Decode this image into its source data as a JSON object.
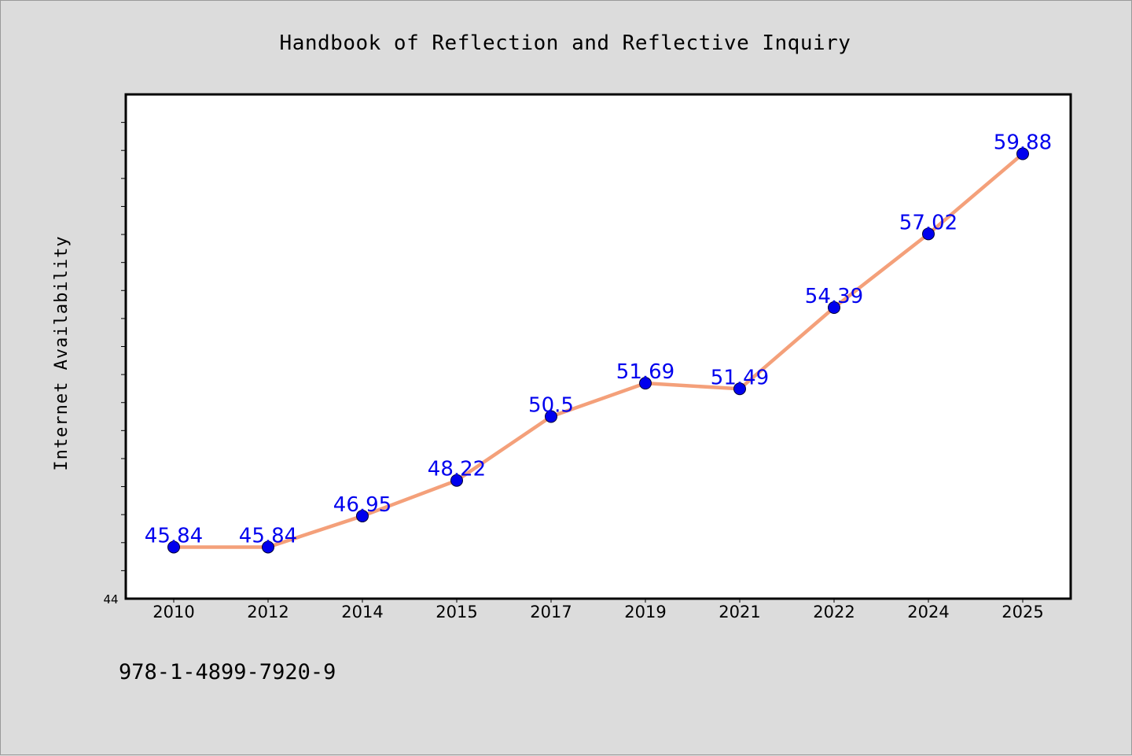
{
  "chart_data": {
    "type": "line",
    "title": "Handbook of Reflection and Reflective Inquiry",
    "xlabel": "",
    "ylabel": "Internet Availability",
    "categories": [
      "2010",
      "2012",
      "2014",
      "2015",
      "2017",
      "2019",
      "2021",
      "2022",
      "2024",
      "2025"
    ],
    "series": [
      {
        "values": [
          45.84,
          45.84,
          46.95,
          48.22,
          50.5,
          51.69,
          51.49,
          54.39,
          57.02,
          59.88
        ],
        "labels": [
          "45.84",
          "45.84",
          "46.95",
          "48.22",
          "50.5",
          "51.69",
          "51.49",
          "54.39",
          "57.02",
          "59.88"
        ],
        "line_color": "#f4a07a",
        "marker_color": "#0000ee",
        "label_color": "#0000ee"
      }
    ],
    "y_tick_label": "44",
    "ylim": [
      44,
      62
    ],
    "grid": false,
    "legend": "none"
  },
  "footer": {
    "isbn": "978-1-4899-7920-9"
  },
  "colors": {
    "background": "#dcdcdc",
    "plot_background": "#ffffff",
    "axis": "#000000"
  }
}
